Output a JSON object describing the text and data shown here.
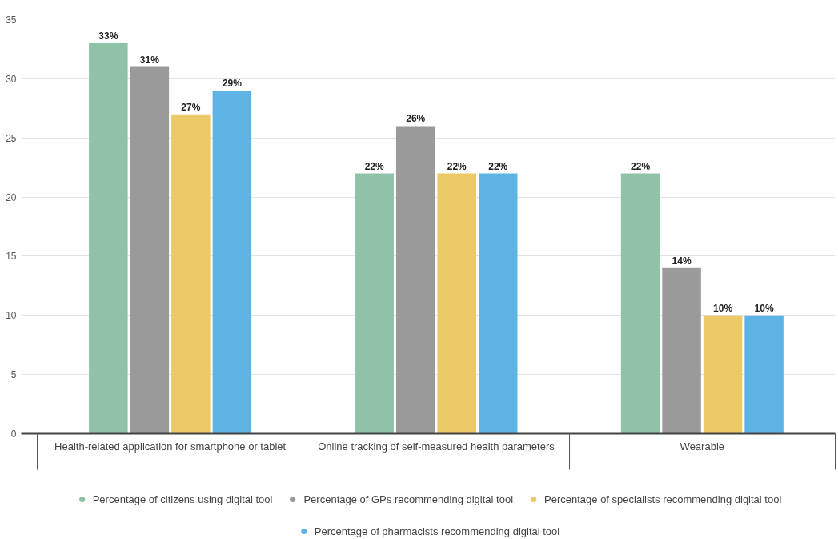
{
  "chart_data": {
    "type": "bar",
    "categories": [
      "Health-related application for smartphone or tablet",
      "Online tracking of self-measured health parameters",
      "Wearable"
    ],
    "series": [
      {
        "name": "Percentage of citizens using digital tool",
        "color": "#8ec3a7",
        "values": [
          33,
          22,
          22
        ],
        "value_labels": [
          "33%",
          "22%",
          "22%"
        ]
      },
      {
        "name": "Percentage of GPs recommending digital tool",
        "color": "#9a9a9a",
        "values": [
          31,
          26,
          14
        ],
        "value_labels": [
          "31%",
          "26%",
          "14%"
        ]
      },
      {
        "name": "Percentage of specialists recommending digital tool",
        "color": "#ecc967",
        "values": [
          27,
          22,
          10
        ],
        "value_labels": [
          "27%",
          "22%",
          "10%"
        ]
      },
      {
        "name": "Percentage of pharmacists recommending digital tool",
        "color": "#5db4e4",
        "values": [
          29,
          22,
          10
        ],
        "value_labels": [
          "29%",
          "22%",
          "10%"
        ]
      }
    ],
    "ylim": [
      0,
      35
    ],
    "yticks": [
      0,
      5,
      10,
      15,
      20,
      25,
      30,
      35
    ],
    "grid": "y",
    "legend": "bottom"
  }
}
